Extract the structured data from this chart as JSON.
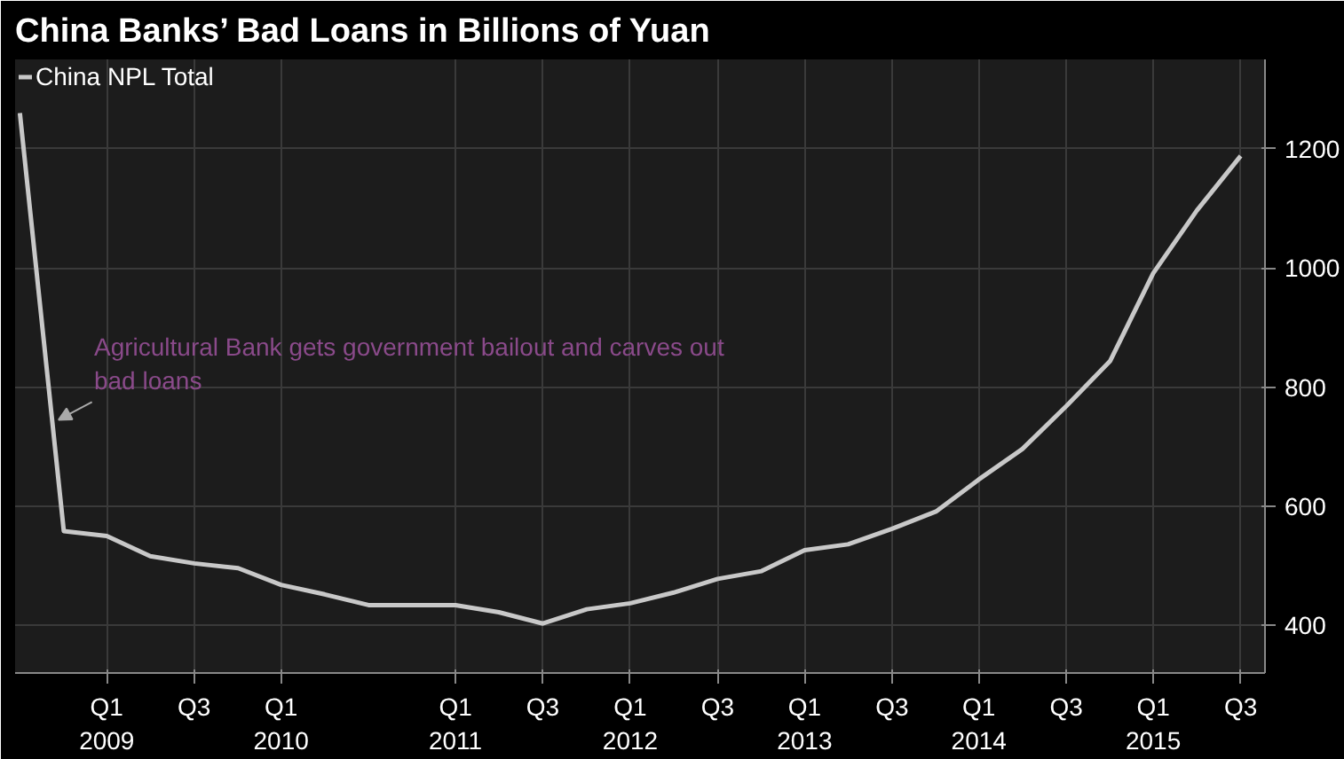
{
  "chart_data": {
    "type": "line",
    "title": "China Banks’ Bad Loans in Billions of Yuan",
    "x": [
      "2008-09-30",
      "2008-12-31",
      "2009-03-31",
      "2009-06-30",
      "2009-09-30",
      "2009-12-31",
      "2010-03-31",
      "2010-06-30",
      "2010-09-30",
      "2010-12-31",
      "2011-03-31",
      "2011-06-30",
      "2011-09-30",
      "2011-12-31",
      "2012-03-31",
      "2012-06-30",
      "2012-09-30",
      "2012-12-31",
      "2013-03-31",
      "2013-06-30",
      "2013-09-30",
      "2013-12-31",
      "2014-03-31",
      "2014-06-30",
      "2014-09-30",
      "2014-12-31",
      "2015-03-31",
      "2015-06-30",
      "2015-09-30"
    ],
    "series": [
      {
        "name": "China NPL Total",
        "color": "#c8c8c8",
        "values": [
          1260,
          558,
          550,
          516,
          504,
          496,
          468,
          452,
          434,
          434,
          434,
          422,
          403,
          427,
          437,
          455,
          478,
          491,
          526,
          536,
          562,
          591,
          645,
          696,
          768,
          844,
          991,
          1096,
          1188
        ]
      }
    ],
    "annotations": [
      {
        "text": "Agricultural Bank gets government bailout and carves out\nbad loans",
        "x": "2008-12-20",
        "y": 745
      }
    ],
    "xlim": [
      "2008-09-20",
      "2015-11-20"
    ],
    "xticks": [
      {
        "value": "2009-03-31",
        "label": "Q1\n2009"
      },
      {
        "value": "2009-09-30",
        "label": "Q3"
      },
      {
        "value": "2010-03-31",
        "label": "Q1\n2010"
      },
      {
        "value": "2011-03-31",
        "label": "Q1\n2011"
      },
      {
        "value": "2011-09-30",
        "label": "Q3"
      },
      {
        "value": "2012-03-31",
        "label": "Q1\n2012"
      },
      {
        "value": "2012-09-30",
        "label": "Q3"
      },
      {
        "value": "2013-03-31",
        "label": "Q1\n2013"
      },
      {
        "value": "2013-09-30",
        "label": "Q3"
      },
      {
        "value": "2014-03-31",
        "label": "Q1\n2014"
      },
      {
        "value": "2014-09-30",
        "label": "Q3"
      },
      {
        "value": "2015-03-31",
        "label": "Q1\n2015"
      },
      {
        "value": "2015-09-30",
        "label": "Q3"
      }
    ],
    "ylim": [
      320,
      1350
    ],
    "yticks": [
      400,
      600,
      800,
      1000,
      1200
    ],
    "grid": true,
    "legend": "top left",
    "marker": "none",
    "line_style": "solid"
  }
}
